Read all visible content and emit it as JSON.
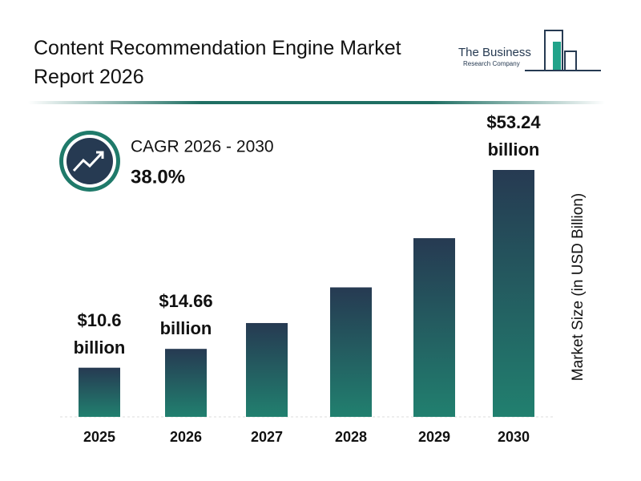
{
  "chart_data": {
    "type": "bar",
    "title": "Content Recommendation Engine Market Report 2026",
    "logo_line1": "The Business",
    "logo_line2": "Research Company",
    "cagr_label": "CAGR 2026 - 2030",
    "cagr_value": "38.0%",
    "ylabel": "Market Size (in USD Billion)",
    "categories": [
      "2025",
      "2026",
      "2027",
      "2028",
      "2029",
      "2030"
    ],
    "values": [
      10.6,
      14.66,
      20.23,
      27.92,
      38.53,
      53.24
    ],
    "value_labels": [
      "$10.6 billion",
      "$14.66 billion",
      null,
      null,
      null,
      "$53.24 billion"
    ],
    "color_top": "#263a52",
    "color_bottom": "#21806f"
  }
}
